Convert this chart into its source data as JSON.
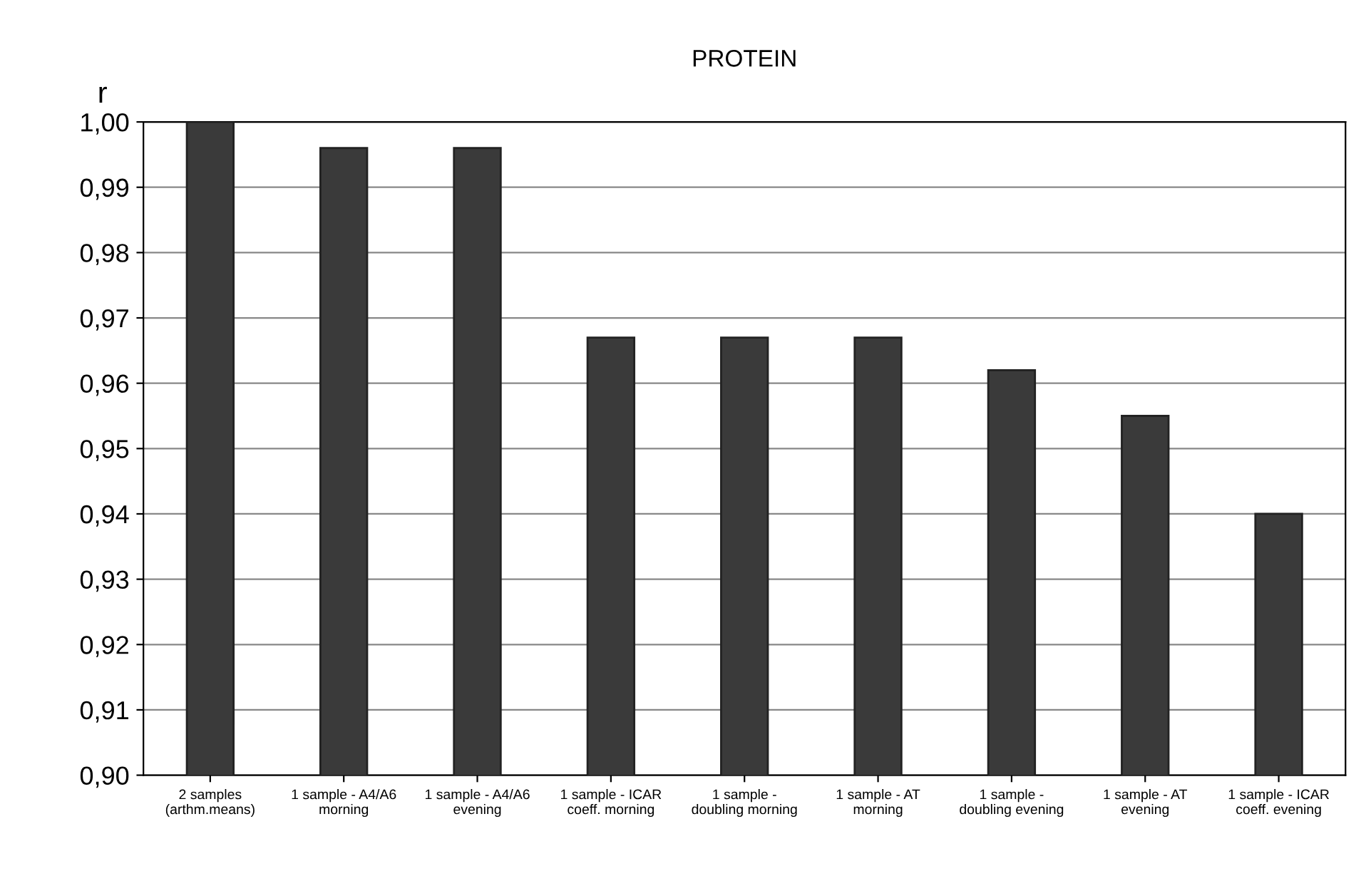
{
  "chart_data": {
    "type": "bar",
    "title": "PROTEIN",
    "ylabel": "r",
    "categories": [
      "2 samples\n(arthm.means)",
      "1 sample - A4/A6\nmorning",
      "1 sample - A4/A6\nevening",
      "1 sample - ICAR\ncoeff. morning",
      "1 sample -\ndoubling morning",
      "1 sample - AT\nmorning",
      "1 sample -\ndoubling evening",
      "1 sample - AT\nevening",
      "1 sample - ICAR\ncoeff. evening"
    ],
    "values": [
      1.0,
      0.996,
      0.996,
      0.967,
      0.967,
      0.967,
      0.962,
      0.955,
      0.94
    ],
    "color": "#3a3a3a",
    "ylim": [
      0.9,
      1.0
    ],
    "yticks": [
      {
        "value": 0.9,
        "label": "0,90"
      },
      {
        "value": 0.91,
        "label": "0,91"
      },
      {
        "value": 0.92,
        "label": "0,92"
      },
      {
        "value": 0.93,
        "label": "0,93"
      },
      {
        "value": 0.94,
        "label": "0,94"
      },
      {
        "value": 0.95,
        "label": "0,95"
      },
      {
        "value": 0.96,
        "label": "0,96"
      },
      {
        "value": 0.97,
        "label": "0,97"
      },
      {
        "value": 0.98,
        "label": "0,98"
      },
      {
        "value": 0.99,
        "label": "0,99"
      },
      {
        "value": 1.0,
        "label": "1,00"
      }
    ],
    "grid": "y"
  }
}
